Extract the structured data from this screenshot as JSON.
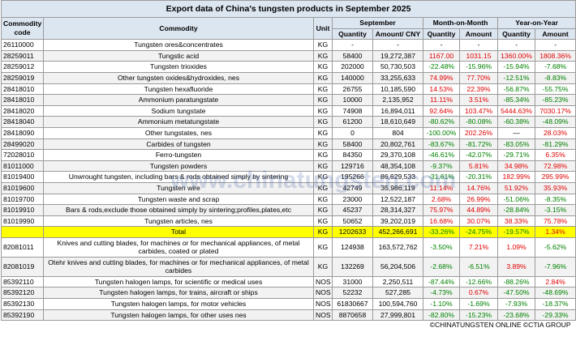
{
  "header": {
    "title": "Export data of China's tungsten products in September 2025"
  },
  "columns": {
    "code": "Commodity code",
    "commodity": "Commodity",
    "unit": "Unit",
    "september": "September",
    "mom": "Month-on-Month",
    "yoy": "Year-on-Year",
    "sub": [
      "Quantity",
      "Amount/ CNY",
      "Quantity",
      "Amount",
      "Quantity",
      "Amount"
    ]
  },
  "rows": [
    {
      "code": "26110000",
      "commodity": "Tungsten ores&concentrates",
      "unit": "KG",
      "cells": [
        "-",
        "-",
        "-",
        "-",
        "-",
        "-"
      ]
    },
    {
      "code": "28259011",
      "commodity": "Tungstic acid",
      "unit": "KG",
      "cells": [
        "58400",
        "19,272,387",
        "1167.00",
        "1031.15",
        "1360.00%",
        "1808.36%"
      ]
    },
    {
      "code": "28259012",
      "commodity": "Tungsten trioxides",
      "unit": "KG",
      "cells": [
        "202000",
        "50,730,503",
        "-22.48%",
        "-15.96%",
        "-15.94%",
        "-7.68%"
      ]
    },
    {
      "code": "28259019",
      "commodity": "Other tungsten oxides&hydroxides, nes",
      "unit": "KG",
      "cells": [
        "140000",
        "33,255,633",
        "74.99%",
        "77.70%",
        "-12.51%",
        "-8.83%"
      ]
    },
    {
      "code": "28418010",
      "commodity": "Tungsten hexafluoride",
      "unit": "KG",
      "cells": [
        "26755",
        "10,185,590",
        "14.53%",
        "22.39%",
        "-56.87%",
        "-55.75%"
      ]
    },
    {
      "code": "28418010",
      "commodity": "Ammonium paratungstate",
      "unit": "KG",
      "cells": [
        "10000",
        "2,135,952",
        "11.11%",
        "3.51%",
        "-85.34%",
        "-85.23%"
      ]
    },
    {
      "code": "28418020",
      "commodity": "Sodium tungstate",
      "unit": "KG",
      "cells": [
        "74908",
        "16,894,011",
        "92.64%",
        "103.47%",
        "5444.63%",
        "7030.17%"
      ]
    },
    {
      "code": "28418040",
      "commodity": "Ammonium metatungstate",
      "unit": "KG",
      "cells": [
        "61200",
        "18,610,649",
        "-80.62%",
        "-80.08%",
        "-60.38%",
        "-48.09%"
      ]
    },
    {
      "code": "28418090",
      "commodity": "Other tungstates, nes",
      "unit": "KG",
      "cells": [
        "0",
        "804",
        "-100.00%",
        "202.26%",
        "—",
        "28.03%"
      ]
    },
    {
      "code": "28499020",
      "commodity": "Carbides of tungsten",
      "unit": "KG",
      "cells": [
        "58400",
        "20,802,761",
        "-83.67%",
        "-81.72%",
        "-83.05%",
        "-81.29%"
      ]
    },
    {
      "code": "72028010",
      "commodity": "Ferro-tungsten",
      "unit": "KG",
      "cells": [
        "84350",
        "29,370,108",
        "-46.61%",
        "-42.07%",
        "-29.71%",
        "6.35%"
      ]
    },
    {
      "code": "81011000",
      "commodity": "Tungsten powders",
      "unit": "KG",
      "cells": [
        "129716",
        "48,354,108",
        "-9.37%",
        "5.81%",
        "34.98%",
        "72.98%"
      ]
    },
    {
      "code": "81019400",
      "commodity": "Unwrought tungsten, including bars & rods obtained simply by sintering",
      "unit": "KG",
      "cells": [
        "195266",
        "86,629,533",
        "-31.61%",
        "-20.31%",
        "182.99%",
        "295.99%"
      ]
    },
    {
      "code": "81019600",
      "commodity": "Tungsten wire",
      "unit": "KG",
      "cells": [
        "42749",
        "35,986,119",
        "11.14%",
        "14.76%",
        "51.92%",
        "35.93%"
      ]
    },
    {
      "code": "81019700",
      "commodity": "Tungsten waste and scrap",
      "unit": "KG",
      "cells": [
        "23000",
        "12,522,187",
        "2.68%",
        "26.99%",
        "-51.06%",
        "-8.35%"
      ]
    },
    {
      "code": "81019910",
      "commodity": "Bars & rods,exclude those obtained simply by sintering;profiles,plates,etc",
      "unit": "KG",
      "cells": [
        "45237",
        "28,314,327",
        "75.97%",
        "44.89%",
        "-28.84%",
        "-3.15%"
      ]
    },
    {
      "code": "81019990",
      "commodity": "Tungsten articles, nes",
      "unit": "KG",
      "cells": [
        "50652",
        "39,202,019",
        "16.68%",
        "30.07%",
        "38.33%",
        "75.78%"
      ]
    },
    {
      "commodity": "Total",
      "unit": "KG",
      "cells": [
        "1202633",
        "452,266,691",
        "-33.26%",
        "-24.75%",
        "-19.57%",
        "1.34%"
      ],
      "highlight": true
    },
    {
      "code": "82081011",
      "commodity": "Knives and cutting blades, for machines or for mechanical appliances, of metal carbides, coated or plated",
      "unit": "KG",
      "cells": [
        "124938",
        "163,572,762",
        "-3.50%",
        "7.21%",
        "1.09%",
        "-5.62%"
      ]
    },
    {
      "code": "82081019",
      "commodity": "Otehr knives and cutting blades, for machines or for mechanical appliances, of metal carbides",
      "unit": "KG",
      "cells": [
        "132269",
        "56,204,506",
        "-2.68%",
        "-6.51%",
        "3.89%",
        "-7.96%"
      ]
    },
    {
      "code": "85392110",
      "commodity": "Tungsten halogen lamps, for scientific or medical uses",
      "unit": "NOS",
      "cells": [
        "31000",
        "2,250,511",
        "-87.44%",
        "-12.66%",
        "-88.26%",
        "2.84%"
      ]
    },
    {
      "code": "85392120",
      "commodity": "Tungsten halogen lamps, for trains, aircraft or ships",
      "unit": "NOS",
      "cells": [
        "52232",
        "527,285",
        "-4.73%",
        "0.67%",
        "-47.50%",
        "-48.69%"
      ]
    },
    {
      "code": "85392130",
      "commodity": "Tungsten halogen lamps, for motor vehicles",
      "unit": "NOS",
      "cells": [
        "61830667",
        "100,594,760",
        "-1.10%",
        "-1.69%",
        "-7.93%",
        "-18.37%"
      ]
    },
    {
      "code": "85392190",
      "commodity": "Tungsten halogen lamps, for other uses nes",
      "unit": "NOS",
      "cells": [
        "8870658",
        "27,999,801",
        "-82.80%",
        "-15.23%",
        "-23.68%",
        "-29.33%"
      ]
    }
  ],
  "footer": "©CHINATUNGSTEN ONLINE  ©CTIA GROUP",
  "watermark": "www.chinatungsten.com"
}
